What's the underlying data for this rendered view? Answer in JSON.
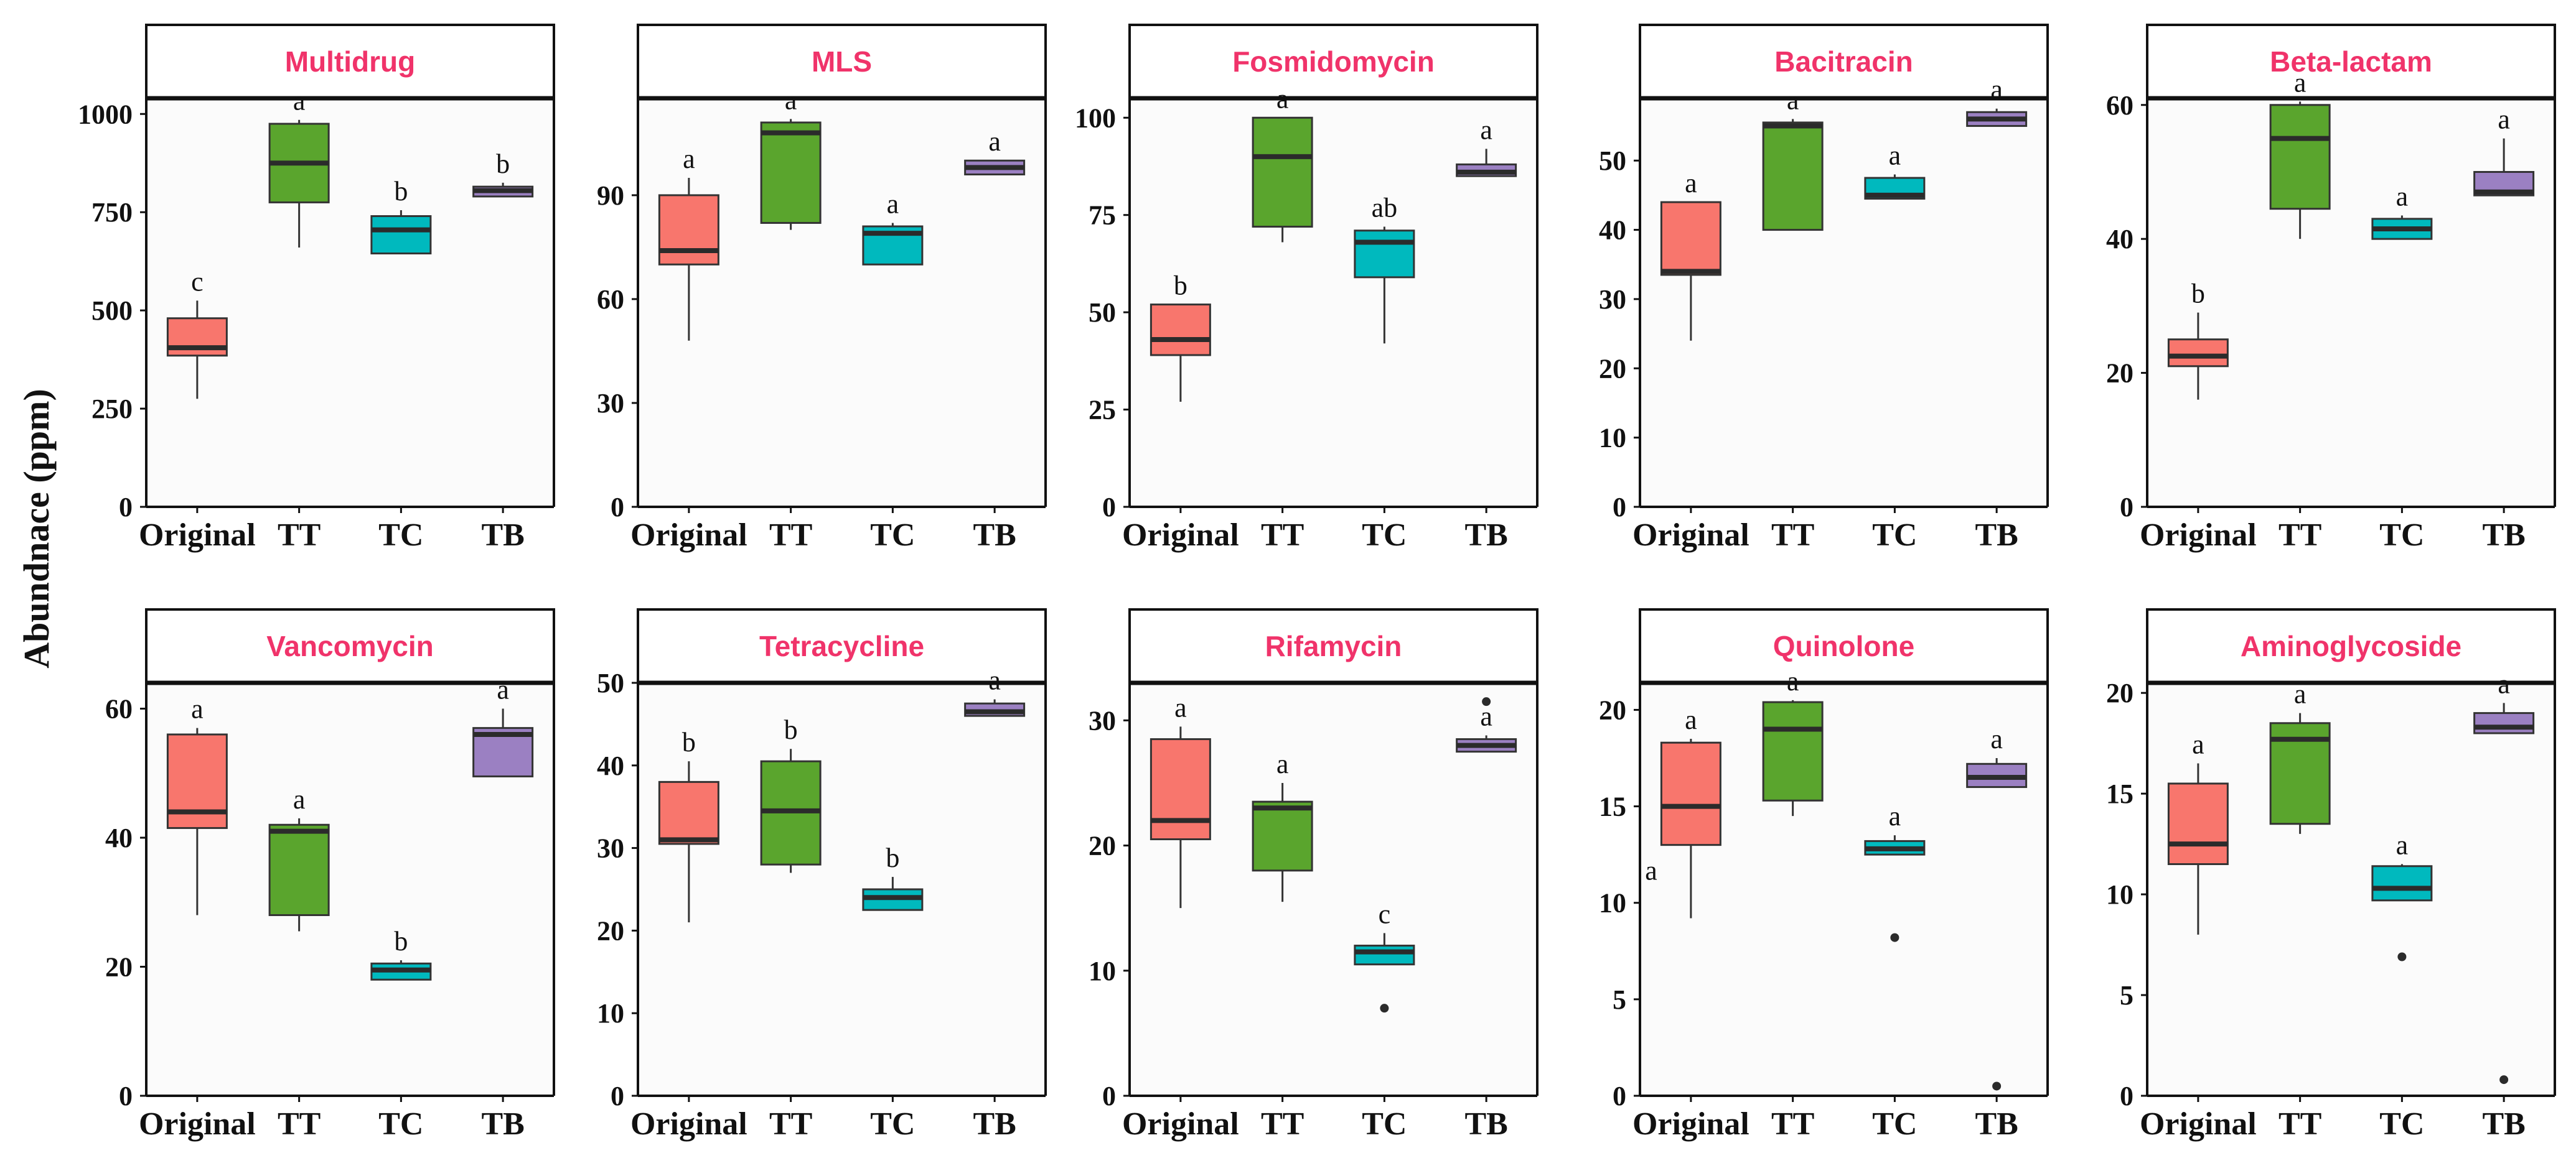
{
  "colors": {
    "Original": "#f8766d",
    "TT": "#5aa52d",
    "TC": "#00b9be",
    "TB": "#9b80c2",
    "title": "#f0336a"
  },
  "chart_data": {
    "type": "box",
    "ylabel": "Abundnace (ppm)",
    "categories": [
      "Original",
      "TT",
      "TC",
      "TB"
    ],
    "panels": [
      {
        "title": "Multidrug",
        "ylim": [
          0,
          1040
        ],
        "yticks": [
          0,
          250,
          500,
          750,
          1000
        ],
        "boxes": [
          {
            "group": "Original",
            "min": 275,
            "q1": 385,
            "median": 405,
            "q3": 480,
            "max": 525,
            "label": "c",
            "outliers": []
          },
          {
            "group": "TT",
            "min": 660,
            "q1": 775,
            "median": 875,
            "q3": 975,
            "max": 985,
            "label": "a",
            "outliers": []
          },
          {
            "group": "TC",
            "min": 645,
            "q1": 645,
            "median": 705,
            "q3": 740,
            "max": 755,
            "label": "b",
            "outliers": []
          },
          {
            "group": "TB",
            "min": 790,
            "q1": 790,
            "median": 805,
            "q3": 815,
            "max": 825,
            "label": "b",
            "outliers": []
          }
        ]
      },
      {
        "title": "MLS",
        "ylim": [
          0,
          118
        ],
        "yticks": [
          0,
          30,
          60,
          90
        ],
        "boxes": [
          {
            "group": "Original",
            "min": 48,
            "q1": 70,
            "median": 74,
            "q3": 90,
            "max": 95,
            "label": "a",
            "outliers": []
          },
          {
            "group": "TT",
            "min": 80,
            "q1": 82,
            "median": 108,
            "q3": 111,
            "max": 112,
            "label": "a",
            "outliers": []
          },
          {
            "group": "TC",
            "min": 70,
            "q1": 70,
            "median": 79,
            "q3": 81,
            "max": 82,
            "label": "a",
            "outliers": []
          },
          {
            "group": "TB",
            "min": 96,
            "q1": 96,
            "median": 98,
            "q3": 100,
            "max": 100,
            "label": "a",
            "outliers": []
          }
        ]
      },
      {
        "title": "Fosmidomycin",
        "ylim": [
          0,
          105
        ],
        "yticks": [
          0,
          25,
          50,
          75,
          100
        ],
        "boxes": [
          {
            "group": "Original",
            "min": 27,
            "q1": 39,
            "median": 43,
            "q3": 52,
            "max": 52,
            "label": "b",
            "outliers": []
          },
          {
            "group": "TT",
            "min": 68,
            "q1": 72,
            "median": 90,
            "q3": 100,
            "max": 100,
            "label": "a",
            "outliers": []
          },
          {
            "group": "TC",
            "min": 42,
            "q1": 59,
            "median": 68,
            "q3": 71,
            "max": 72,
            "label": "ab",
            "outliers": []
          },
          {
            "group": "TB",
            "min": 85,
            "q1": 85,
            "median": 86,
            "q3": 88,
            "max": 92,
            "label": "a",
            "outliers": []
          }
        ]
      },
      {
        "title": "Bacitracin",
        "ylim": [
          0,
          59
        ],
        "yticks": [
          0,
          10,
          20,
          30,
          40,
          50
        ],
        "boxes": [
          {
            "group": "Original",
            "min": 24,
            "q1": 33.5,
            "median": 34,
            "q3": 44,
            "max": 44,
            "label": "a",
            "outliers": []
          },
          {
            "group": "TT",
            "min": 40,
            "q1": 40,
            "median": 55,
            "q3": 55.5,
            "max": 56,
            "label": "a",
            "outliers": []
          },
          {
            "group": "TC",
            "min": 44.5,
            "q1": 44.5,
            "median": 45,
            "q3": 47.5,
            "max": 48,
            "label": "a",
            "outliers": []
          },
          {
            "group": "TB",
            "min": 55,
            "q1": 55,
            "median": 56,
            "q3": 57,
            "max": 57.5,
            "label": "a",
            "outliers": []
          }
        ]
      },
      {
        "title": "Beta-lactam",
        "ylim": [
          0,
          61
        ],
        "yticks": [
          0,
          20,
          40,
          60
        ],
        "boxes": [
          {
            "group": "Original",
            "min": 16,
            "q1": 21,
            "median": 22.5,
            "q3": 25,
            "max": 29,
            "label": "b",
            "outliers": []
          },
          {
            "group": "TT",
            "min": 40,
            "q1": 44.5,
            "median": 55,
            "q3": 60,
            "max": 60.5,
            "label": "a",
            "outliers": []
          },
          {
            "group": "TC",
            "min": 40,
            "q1": 40,
            "median": 41.5,
            "q3": 43,
            "max": 43.5,
            "label": "a",
            "outliers": []
          },
          {
            "group": "TB",
            "min": 46.5,
            "q1": 46.5,
            "median": 47,
            "q3": 50,
            "max": 55,
            "label": "a",
            "outliers": []
          }
        ]
      },
      {
        "title": "Vancomycin",
        "ylim": [
          0,
          64
        ],
        "yticks": [
          0,
          20,
          40,
          60
        ],
        "boxes": [
          {
            "group": "Original",
            "min": 28,
            "q1": 41.5,
            "median": 44,
            "q3": 56,
            "max": 57,
            "label": "a",
            "outliers": []
          },
          {
            "group": "TT",
            "min": 25.5,
            "q1": 28,
            "median": 41,
            "q3": 42,
            "max": 43,
            "label": "a",
            "outliers": []
          },
          {
            "group": "TC",
            "min": 18,
            "q1": 18,
            "median": 19.5,
            "q3": 20.5,
            "max": 21,
            "label": "b",
            "outliers": []
          },
          {
            "group": "TB",
            "min": 49.5,
            "q1": 49.5,
            "median": 56,
            "q3": 57,
            "max": 60,
            "label": "a",
            "outliers": []
          }
        ]
      },
      {
        "title": "Tetracycline",
        "ylim": [
          0,
          50
        ],
        "yticks": [
          0,
          10,
          20,
          30,
          40,
          50
        ],
        "boxes": [
          {
            "group": "Original",
            "min": 21,
            "q1": 30.5,
            "median": 31,
            "q3": 38,
            "max": 40.5,
            "label": "b",
            "outliers": []
          },
          {
            "group": "TT",
            "min": 27,
            "q1": 28,
            "median": 34.5,
            "q3": 40.5,
            "max": 42,
            "label": "b",
            "outliers": []
          },
          {
            "group": "TC",
            "min": 22.5,
            "q1": 22.5,
            "median": 24,
            "q3": 25,
            "max": 26.5,
            "label": "b",
            "outliers": []
          },
          {
            "group": "TB",
            "min": 46,
            "q1": 46,
            "median": 46.5,
            "q3": 47.5,
            "max": 48,
            "label": "a",
            "outliers": []
          }
        ]
      },
      {
        "title": "Rifamycin",
        "ylim": [
          0,
          33
        ],
        "yticks": [
          0,
          10,
          20,
          30
        ],
        "boxes": [
          {
            "group": "Original",
            "min": 15,
            "q1": 20.5,
            "median": 22,
            "q3": 28.5,
            "max": 29.5,
            "label": "a",
            "outliers": []
          },
          {
            "group": "TT",
            "min": 15.5,
            "q1": 18,
            "median": 23,
            "q3": 23.5,
            "max": 25,
            "label": "a",
            "outliers": []
          },
          {
            "group": "TC",
            "min": 10.5,
            "q1": 10.5,
            "median": 11.5,
            "q3": 12,
            "max": 13,
            "label": "c",
            "outliers": [
              7
            ]
          },
          {
            "group": "TB",
            "min": 27.5,
            "q1": 27.5,
            "median": 28,
            "q3": 28.5,
            "max": 28.8,
            "label": "a",
            "outliers": [
              31.5
            ]
          }
        ]
      },
      {
        "title": "Quinolone",
        "ylim": [
          0,
          21.4
        ],
        "yticks": [
          0,
          5,
          10,
          15,
          20
        ],
        "boxes": [
          {
            "group": "Original",
            "min": 9.2,
            "q1": 13,
            "median": 15,
            "q3": 18.3,
            "max": 18.5,
            "label": "a",
            "outliers": []
          },
          {
            "group": "TT",
            "min": 14.5,
            "q1": 15.3,
            "median": 19,
            "q3": 20.4,
            "max": 20.5,
            "label": "a",
            "outliers": []
          },
          {
            "group": "TC",
            "min": 12.5,
            "q1": 12.5,
            "median": 12.8,
            "q3": 13.2,
            "max": 13.5,
            "label": "a",
            "outliers": [
              8.2
            ]
          },
          {
            "group": "TB",
            "min": 16,
            "q1": 16,
            "median": 16.5,
            "q3": 17.2,
            "max": 17.5,
            "label": "a",
            "outliers": [
              0.5
            ]
          }
        ]
      },
      {
        "title": "Aminoglycoside",
        "ylim": [
          0,
          20.5
        ],
        "yticks": [
          0,
          5,
          10,
          15,
          20
        ],
        "boxes": [
          {
            "group": "Original",
            "min": 8,
            "q1": 11.5,
            "median": 12.5,
            "q3": 15.5,
            "max": 16.5,
            "label": "a",
            "outliers": []
          },
          {
            "group": "TT",
            "min": 13,
            "q1": 13.5,
            "median": 17.7,
            "q3": 18.5,
            "max": 19,
            "label": "a",
            "outliers": []
          },
          {
            "group": "TC",
            "min": 9.7,
            "q1": 9.7,
            "median": 10.3,
            "q3": 11.4,
            "max": 11.5,
            "label": "a",
            "outliers": [
              6.9
            ]
          },
          {
            "group": "TB",
            "min": 18,
            "q1": 18,
            "median": 18.3,
            "q3": 19,
            "max": 19.5,
            "label": "a",
            "outliers": [
              0.8
            ]
          }
        ]
      }
    ],
    "extra_labels": [
      {
        "panel": "Quinolone",
        "text": "a"
      }
    ]
  }
}
